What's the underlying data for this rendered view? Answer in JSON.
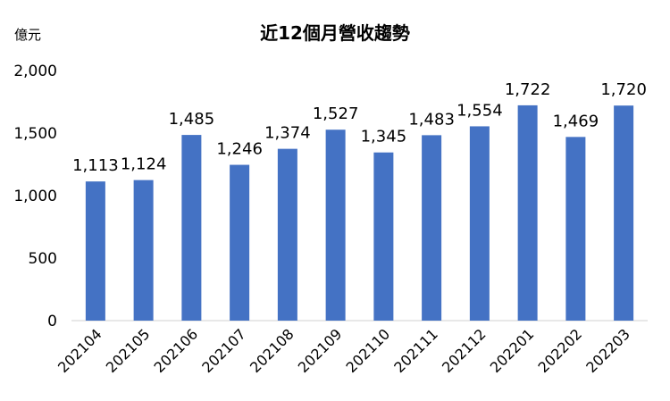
{
  "chart_data": {
    "type": "bar",
    "title": "近12個月營收趨勢",
    "ylabel": "億元",
    "xlabel": "",
    "categories": [
      "202104",
      "202105",
      "202106",
      "202107",
      "202108",
      "202109",
      "202110",
      "202111",
      "202112",
      "202201",
      "202202",
      "202203"
    ],
    "values": [
      1113,
      1124,
      1485,
      1246,
      1374,
      1527,
      1345,
      1483,
      1554,
      1722,
      1469,
      1720
    ],
    "data_labels": [
      "1,113",
      "1,124",
      "1,485",
      "1,246",
      "1,374",
      "1,527",
      "1,345",
      "1,483",
      "1,554",
      "1,722",
      "1,469",
      "1,720"
    ],
    "ylim": [
      0,
      2000
    ],
    "yticks": [
      0,
      500,
      1000,
      1500,
      2000
    ],
    "ytick_labels": [
      "0",
      "500",
      "1,000",
      "1,500",
      "2,000"
    ],
    "grid": false,
    "legend": "none",
    "bar_color": "#4472C4"
  }
}
